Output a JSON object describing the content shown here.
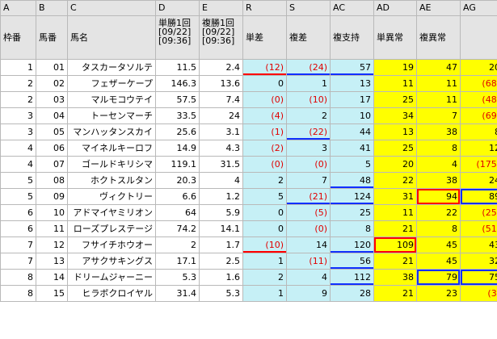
{
  "column_letters": [
    "A",
    "B",
    "C",
    "D",
    "E",
    "R",
    "S",
    "AC",
    "AD",
    "AE",
    "AG"
  ],
  "headers": {
    "waku": "枠番",
    "umaban": "馬番",
    "name": "馬名",
    "tansho": [
      "単勝1回",
      "[09/22]",
      "[09:36]"
    ],
    "fukusho": [
      "複勝1回",
      "[09/22]",
      "[09:36]"
    ],
    "tansa": "単差",
    "fukusa": "複差",
    "fukushiji": "複支持",
    "tanijou": "単異常",
    "fukuijou": "複異常",
    "ag": "AG"
  },
  "colors": {
    "cyan": "#c6f0f6",
    "yellow": "#ffff00",
    "negative": "#e00000",
    "red_mark": "#ff0000",
    "blue_mark": "#1030ff"
  },
  "rows": [
    {
      "waku": "1",
      "umaban": "01",
      "name": "タスカータソルテ",
      "tansho": "11.5",
      "fukusho": "2.4",
      "tansa": "(12)",
      "fukusa": "(24)",
      "shiji": "57",
      "tanijou": "19",
      "fukuijou": "47",
      "ag": "20",
      "neg": [
        "tansa",
        "fukusa"
      ],
      "marks": {
        "tansa": "ul-red",
        "fukusa": "ul-blue",
        "shiji": "ul-blue"
      }
    },
    {
      "waku": "2",
      "umaban": "02",
      "name": "フェザーケープ",
      "tansho": "146.3",
      "fukusho": "13.6",
      "tansa": "0",
      "fukusa": "1",
      "shiji": "13",
      "tanijou": "11",
      "fukuijou": "11",
      "ag": "(68)",
      "neg": [
        "ag"
      ],
      "marks": {}
    },
    {
      "waku": "2",
      "umaban": "03",
      "name": "マルモコウテイ",
      "tansho": "57.5",
      "fukusho": "7.4",
      "tansa": "(0)",
      "fukusa": "(10)",
      "shiji": "17",
      "tanijou": "25",
      "fukuijou": "11",
      "ag": "(48)",
      "neg": [
        "tansa",
        "fukusa",
        "ag"
      ],
      "marks": {}
    },
    {
      "waku": "3",
      "umaban": "04",
      "name": "トーセンマーチ",
      "tansho": "33.5",
      "fukusho": "24",
      "tansa": "(4)",
      "fukusa": "2",
      "shiji": "10",
      "tanijou": "34",
      "fukuijou": "7",
      "ag": "(69)",
      "neg": [
        "tansa",
        "ag"
      ],
      "marks": {}
    },
    {
      "waku": "3",
      "umaban": "05",
      "name": "マンハッタンスカイ",
      "tansho": "25.6",
      "fukusho": "3.1",
      "tansa": "(1)",
      "fukusa": "(22)",
      "shiji": "44",
      "tanijou": "13",
      "fukuijou": "38",
      "ag": "8",
      "neg": [
        "tansa",
        "fukusa"
      ],
      "marks": {
        "fukusa": "ul-blue"
      }
    },
    {
      "waku": "4",
      "umaban": "06",
      "name": "マイネルキーロフ",
      "tansho": "14.9",
      "fukusho": "4.3",
      "tansa": "(2)",
      "fukusa": "3",
      "shiji": "41",
      "tanijou": "25",
      "fukuijou": "8",
      "ag": "12",
      "neg": [
        "tansa"
      ],
      "marks": {}
    },
    {
      "waku": "4",
      "umaban": "07",
      "name": "ゴールドキリシマ",
      "tansho": "119.1",
      "fukusho": "31.5",
      "tansa": "(0)",
      "fukusa": "(0)",
      "shiji": "5",
      "tanijou": "20",
      "fukuijou": "4",
      "ag": "(175)",
      "neg": [
        "tansa",
        "fukusa",
        "ag"
      ],
      "marks": {}
    },
    {
      "waku": "5",
      "umaban": "08",
      "name": "ホクトスルタン",
      "tansho": "20.3",
      "fukusho": "4",
      "tansa": "2",
      "fukusa": "7",
      "shiji": "48",
      "tanijou": "22",
      "fukuijou": "38",
      "ag": "24",
      "neg": [],
      "marks": {
        "shiji": "ul-blue"
      }
    },
    {
      "waku": "5",
      "umaban": "09",
      "name": "ヴィクトリー",
      "tansho": "6.6",
      "fukusho": "1.2",
      "tansa": "5",
      "fukusa": "(21)",
      "shiji": "124",
      "tanijou": "31",
      "fukuijou": "94",
      "ag": "89",
      "neg": [
        "fukusa"
      ],
      "marks": {
        "fukusa": "ul-blue",
        "shiji": "ul-blue",
        "fukuijou": "box-red",
        "ag": "box-blue"
      }
    },
    {
      "waku": "6",
      "umaban": "10",
      "name": "アドマイヤミリオン",
      "tansho": "64",
      "fukusho": "5.9",
      "tansa": "0",
      "fukusa": "(5)",
      "shiji": "25",
      "tanijou": "11",
      "fukuijou": "22",
      "ag": "(25)",
      "neg": [
        "fukusa",
        "ag"
      ],
      "marks": {}
    },
    {
      "waku": "6",
      "umaban": "11",
      "name": "ローズプレステージ",
      "tansho": "74.2",
      "fukusho": "14.1",
      "tansa": "0",
      "fukusa": "(0)",
      "shiji": "8",
      "tanijou": "21",
      "fukuijou": "8",
      "ag": "(51)",
      "neg": [
        "fukusa",
        "ag"
      ],
      "marks": {}
    },
    {
      "waku": "7",
      "umaban": "12",
      "name": "フサイチホウオー",
      "tansho": "2",
      "fukusho": "1.7",
      "tansa": "(10)",
      "fukusa": "14",
      "shiji": "120",
      "tanijou": "109",
      "fukuijou": "45",
      "ag": "43",
      "neg": [
        "tansa"
      ],
      "marks": {
        "tansa": "ul-red",
        "shiji": "ul-blue",
        "tanijou": "box-red"
      }
    },
    {
      "waku": "7",
      "umaban": "13",
      "name": "アサクサキングス",
      "tansho": "17.1",
      "fukusho": "2.5",
      "tansa": "1",
      "fukusa": "(11)",
      "shiji": "56",
      "tanijou": "21",
      "fukuijou": "45",
      "ag": "32",
      "neg": [
        "fukusa"
      ],
      "marks": {
        "shiji": "ul-blue"
      }
    },
    {
      "waku": "8",
      "umaban": "14",
      "name": "ドリームジャーニー",
      "tansho": "5.3",
      "fukusho": "1.6",
      "tansa": "2",
      "fukusa": "4",
      "shiji": "112",
      "tanijou": "38",
      "fukuijou": "79",
      "ag": "75",
      "neg": [],
      "marks": {
        "shiji": "ul-blue",
        "fukuijou": "box-blue",
        "ag": "box-blue"
      }
    },
    {
      "waku": "8",
      "umaban": "15",
      "name": "ヒラボクロイヤル",
      "tansho": "31.4",
      "fukusho": "5.3",
      "tansa": "1",
      "fukusa": "9",
      "shiji": "28",
      "tanijou": "21",
      "fukuijou": "23",
      "ag": "(3)",
      "neg": [
        "ag"
      ],
      "marks": {}
    }
  ]
}
